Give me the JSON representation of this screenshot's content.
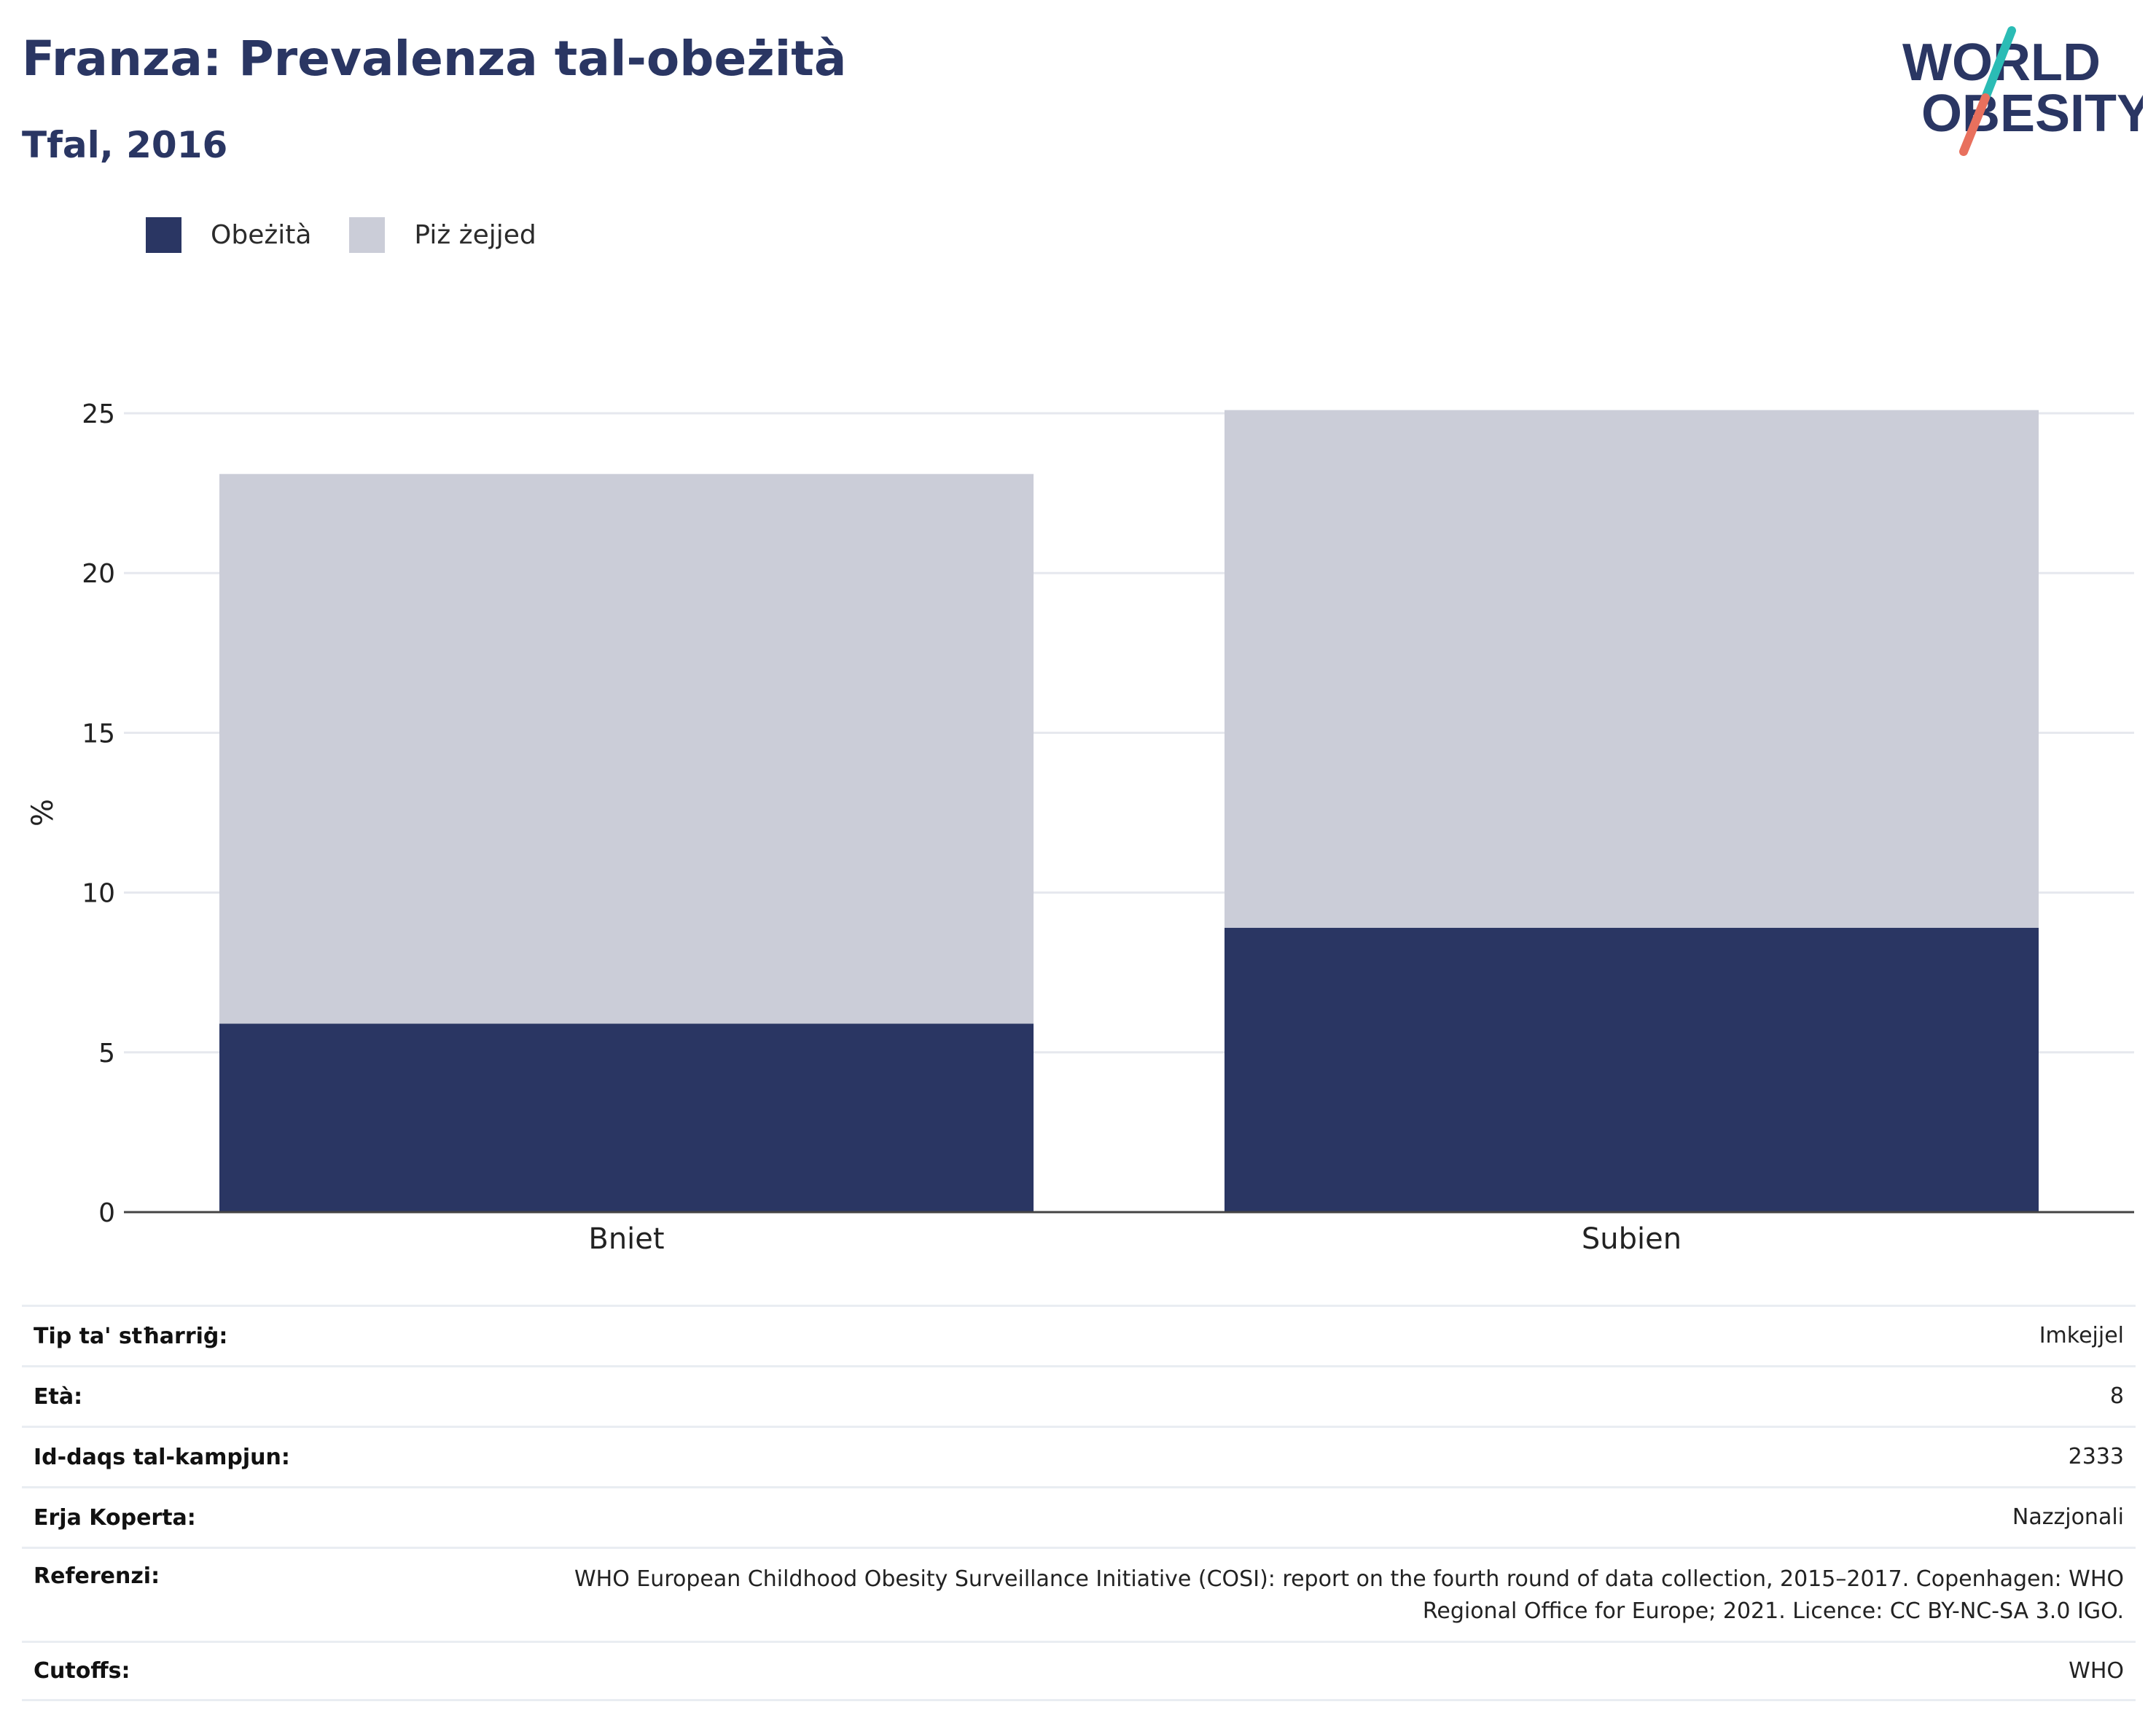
{
  "header": {
    "title": "Franza: Prevalenza tal-obeżità",
    "subtitle": "Tfal, 2016"
  },
  "logo": {
    "line1": "WORLD",
    "line2": "OBESITY",
    "colors": {
      "text": "#2a3663",
      "slash_top": "#2bbcb5",
      "slash_bottom": "#e8705d"
    }
  },
  "legend": [
    {
      "label": "Obeżità",
      "color": "#2a3663"
    },
    {
      "label": "Piż żejjed",
      "color": "#cbcdd8"
    }
  ],
  "chart_data": {
    "type": "bar",
    "stacked": true,
    "categories": [
      "Bniet",
      "Subien"
    ],
    "series": [
      {
        "name": "Obeżità",
        "values": [
          5.9,
          8.9
        ],
        "color": "#2a3663"
      },
      {
        "name": "Piż żejjed",
        "values": [
          17.2,
          16.2
        ],
        "color": "#cbcdd8"
      }
    ],
    "ylabel": "%",
    "ylim": [
      0,
      25
    ],
    "yticks": [
      0,
      5,
      10,
      15,
      20,
      25
    ],
    "grid": true,
    "legend_position": "top-left"
  },
  "info_table": [
    {
      "label": "Tip ta' stħarriġ:",
      "value": "Imkejjel"
    },
    {
      "label": "Età:",
      "value": "8"
    },
    {
      "label": "Id-daqs tal-kampjun:",
      "value": "2333"
    },
    {
      "label": "Erja Koperta:",
      "value": "Nazzjonali"
    },
    {
      "label": "Referenzi:",
      "value": "WHO European Childhood Obesity Surveillance Initiative (COSI): report on the fourth round of data collection, 2015–2017. Copenhagen: WHO Regional Office for Europe; 2021. Licence: CC BY-NC-SA 3.0 IGO."
    },
    {
      "label": "Cutoffs:",
      "value": "WHO"
    }
  ]
}
